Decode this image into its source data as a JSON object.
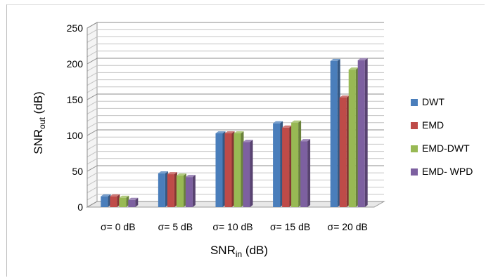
{
  "chart_data": {
    "type": "bar",
    "title": "",
    "xlabel": {
      "main": "SNR",
      "sub": "in",
      "suffix": " (dB)"
    },
    "ylabel": {
      "main": "SNR",
      "sub": "out",
      "suffix": " (dB)"
    },
    "categories": [
      "σ= 0 dB",
      "σ= 5 dB",
      "σ= 10 dB",
      "σ= 15 dB",
      "σ= 20 dB"
    ],
    "ylim": [
      0,
      250
    ],
    "yticks": [
      "0",
      "50",
      "100",
      "150",
      "200",
      "250"
    ],
    "grid": true,
    "legend_position": "right",
    "series": [
      {
        "name": "DWT",
        "color": "#4a7ebb",
        "values": [
          15,
          47,
          103,
          117,
          204
        ]
      },
      {
        "name": "EMD",
        "color": "#be4b48",
        "values": [
          15,
          46,
          103,
          111,
          153
        ]
      },
      {
        "name": "EMD-DWT",
        "color": "#98b954",
        "values": [
          13,
          44,
          103,
          118,
          192
        ]
      },
      {
        "name": "EMD- WPD",
        "color": "#7d60a0",
        "values": [
          10,
          42,
          91,
          92,
          205
        ]
      }
    ]
  }
}
